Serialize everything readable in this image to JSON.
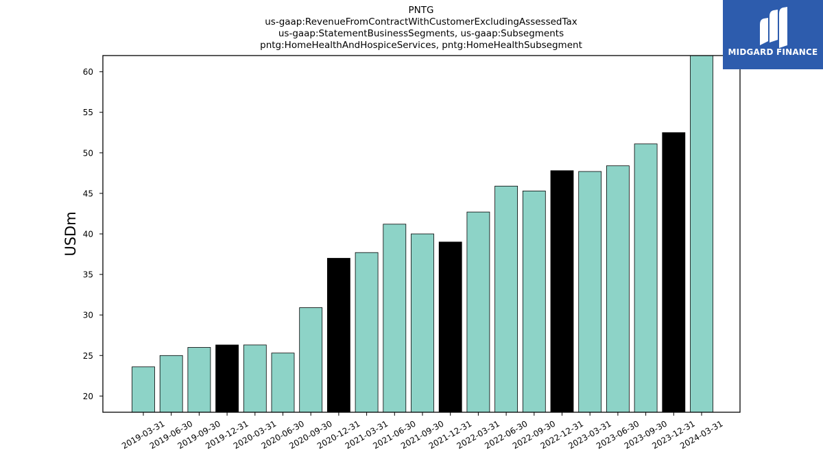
{
  "title_lines": [
    "PNTG",
    "us-gaap:RevenueFromContractWithCustomerExcludingAssessedTax",
    "us-gaap:StatementBusinessSegments, us-gaap:Subsegments",
    "pntg:HomeHealthAndHospiceServices, pntg:HomeHealthSubsegment"
  ],
  "logo": {
    "text": "MIDGARD FINANCE",
    "icon": "midgard-m-logo",
    "background": "#2d5cad"
  },
  "chart_data": {
    "type": "bar",
    "ylabel": "USDm",
    "ylim": [
      18,
      62
    ],
    "yticks": [
      20,
      25,
      30,
      35,
      40,
      45,
      50,
      55,
      60
    ],
    "grid": false,
    "colors": {
      "quarter": "#8dd3c7",
      "year_end": "#000000"
    },
    "categories": [
      "2019-03-31",
      "2019-06-30",
      "2019-09-30",
      "2019-12-31",
      "2020-03-31",
      "2020-06-30",
      "2020-09-30",
      "2020-12-31",
      "2021-03-31",
      "2021-06-30",
      "2021-09-30",
      "2021-12-31",
      "2022-03-31",
      "2022-06-30",
      "2022-09-30",
      "2022-12-31",
      "2023-03-31",
      "2023-06-30",
      "2023-09-30",
      "2023-12-31",
      "2024-03-31"
    ],
    "values": [
      23.6,
      25.0,
      26.0,
      26.3,
      26.3,
      25.3,
      30.9,
      37.0,
      37.7,
      41.2,
      40.0,
      39.0,
      42.7,
      45.9,
      45.3,
      47.8,
      47.7,
      48.4,
      51.1,
      52.5,
      62.0
    ],
    "year_end": [
      false,
      false,
      false,
      true,
      false,
      false,
      false,
      true,
      false,
      false,
      false,
      true,
      false,
      false,
      false,
      true,
      false,
      false,
      false,
      true,
      false
    ]
  }
}
